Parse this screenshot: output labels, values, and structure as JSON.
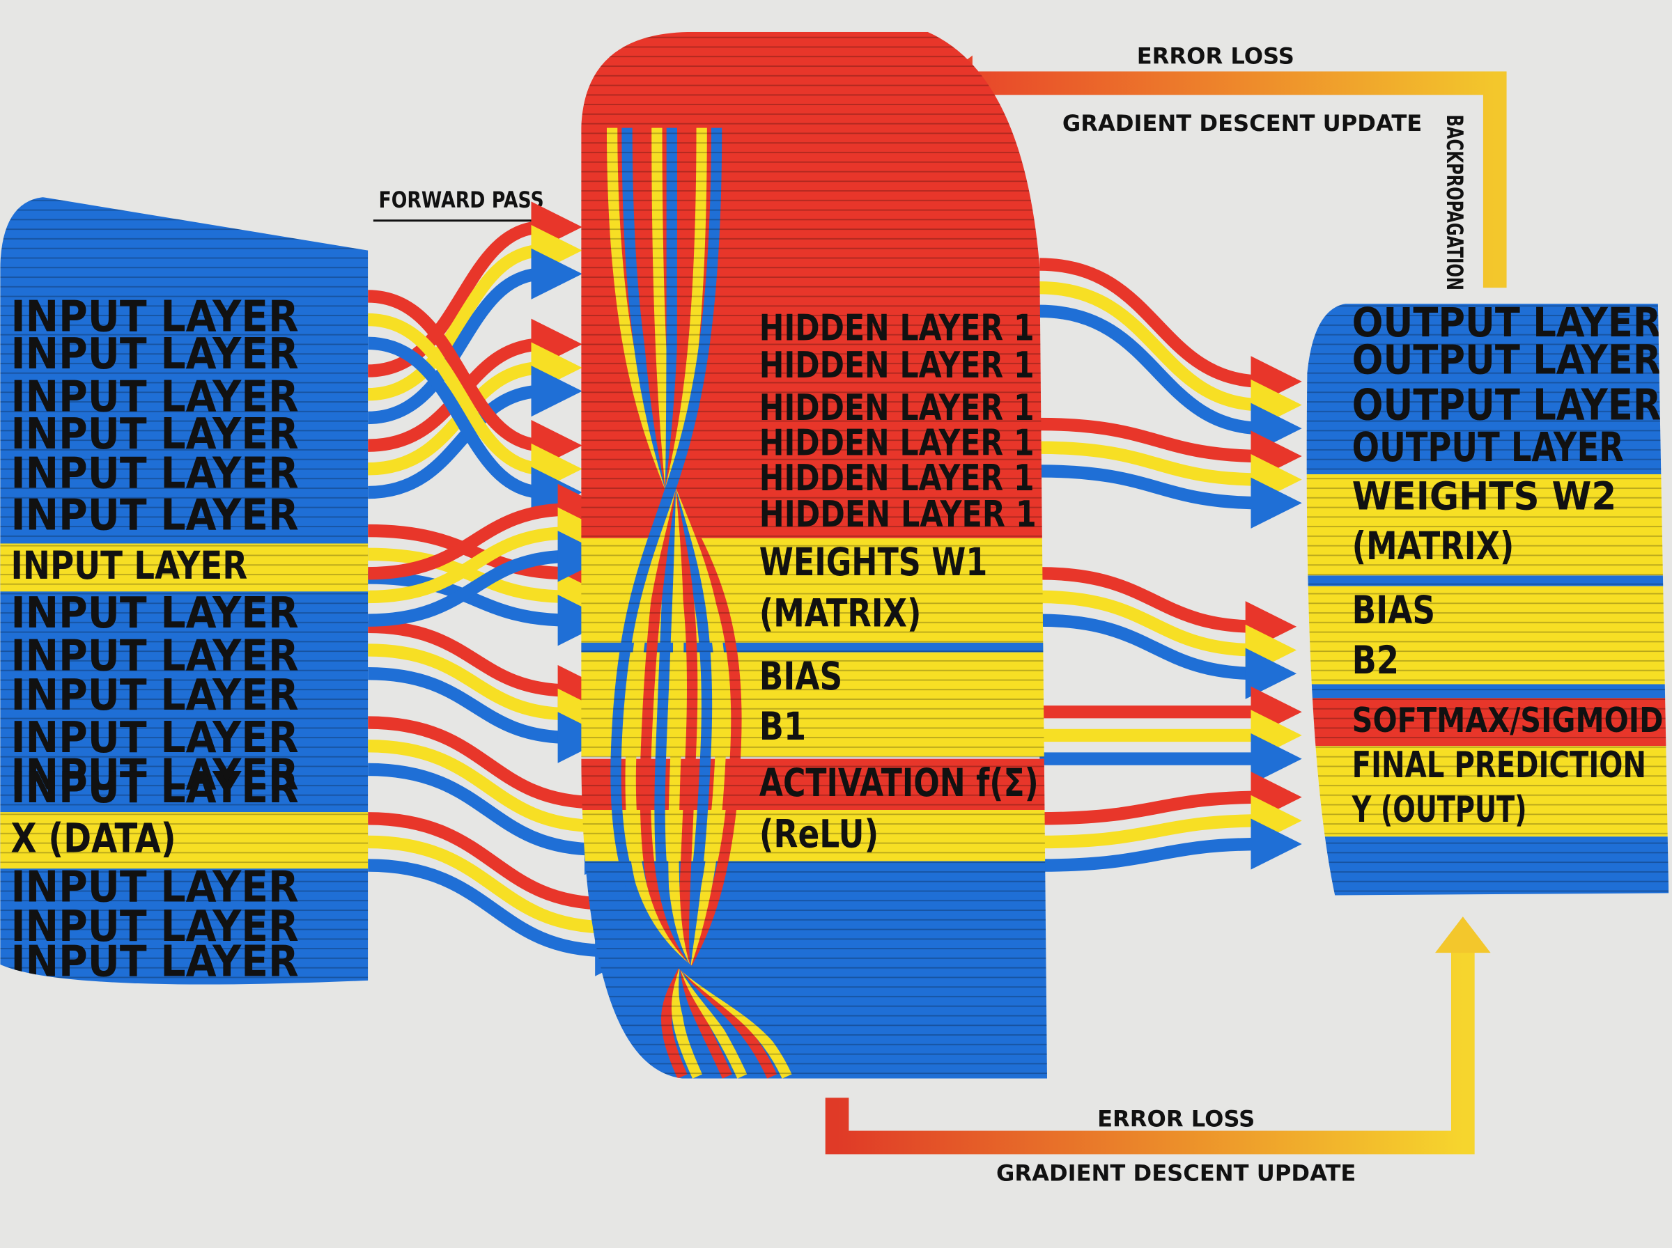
{
  "forward_pass": "FORWARD PASS",
  "backprop_top": {
    "error_loss": "ERROR LOSS",
    "update": "GRADIENT DESCENT UPDATE",
    "label": "BACKPROPAGATION"
  },
  "backprop_bottom": {
    "error_loss": "ERROR LOSS",
    "update": "GRADIENT DESCENT UPDATE"
  },
  "input_layer": {
    "title": "INPUT LAYER",
    "data": "X (DATA)"
  },
  "hidden_layer": {
    "title": "HIDDEN LAYER 1",
    "weights": "WEIGHTS W1",
    "weights_type": "(MATRIX)",
    "bias": "BIAS",
    "bias_name": "B1",
    "activation": "ACTIVATION f(Σ)",
    "activation_type": "(ReLU)"
  },
  "output_layer": {
    "title": "OUTPUT LAYER",
    "weights": "WEIGHTS W2",
    "weights_type": "(MATRIX)",
    "bias": "BIAS",
    "bias_name": "B2",
    "activation": "SOFTMAX/SIGMOID",
    "prediction": "FINAL PREDICTION",
    "prediction_type": "Y (OUTPUT)"
  }
}
